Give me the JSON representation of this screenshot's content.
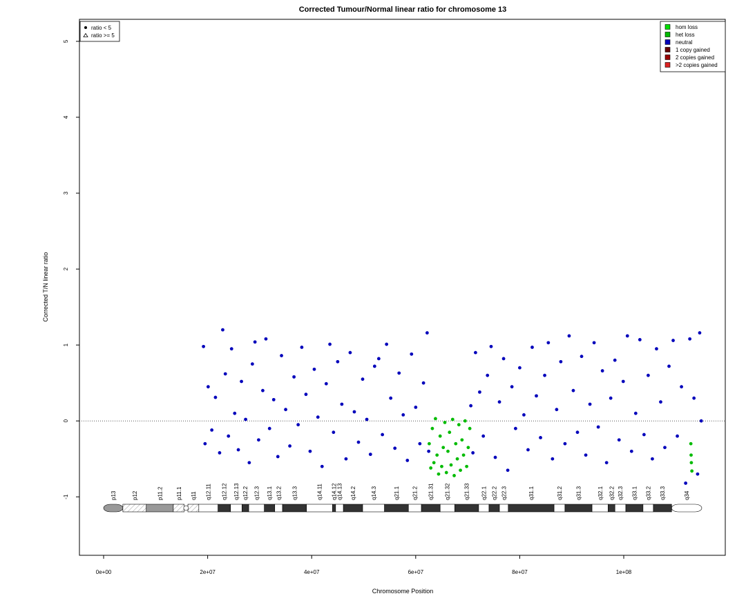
{
  "chart_data": {
    "type": "scatter",
    "title": "Corrected Tumour/Normal linear ratio for chromosome  13",
    "x_label": "Chromosome Position",
    "y_label": "Corrected T/N linear ratio",
    "xlim": [
      -4650000.0,
      119520000.0
    ],
    "ylim": [
      -1.77,
      5.29
    ],
    "xticks": [
      {
        "value": 0,
        "label": "0e+00"
      },
      {
        "value": 20000000.0,
        "label": "2e+07"
      },
      {
        "value": 40000000.0,
        "label": "4e+07"
      },
      {
        "value": 60000000.0,
        "label": "6e+07"
      },
      {
        "value": 80000000.0,
        "label": "8e+07"
      },
      {
        "value": 100000000.0,
        "label": "1e+08"
      }
    ],
    "yticks": [
      -1,
      0,
      1,
      2,
      3,
      4,
      5
    ],
    "hline": 0,
    "shape_legend": [
      "ratio < 5",
      "ratio >= 5"
    ],
    "legend_position": "top-right",
    "series": [
      {
        "name": "hom loss",
        "color": "#00e000",
        "x": [],
        "y": []
      },
      {
        "name": "het loss",
        "color": "#00bb00",
        "x": [
          62600000.0,
          62900000.0,
          63200000.0,
          63500000.0,
          63800000.0,
          64100000.0,
          64400000.0,
          64700000.0,
          65000000.0,
          65300000.0,
          65600000.0,
          65900000.0,
          66200000.0,
          66500000.0,
          66800000.0,
          67100000.0,
          67400000.0,
          67700000.0,
          68000000.0,
          68300000.0,
          68600000.0,
          68900000.0,
          69200000.0,
          69500000.0,
          69800000.0,
          70100000.0,
          70400000.0,
          112900000.0,
          112950000.0,
          113000000.0,
          113100000.0
        ],
        "y": [
          -0.3,
          -0.62,
          -0.1,
          -0.55,
          0.03,
          -0.45,
          -0.7,
          -0.2,
          -0.6,
          -0.35,
          -0.02,
          -0.68,
          -0.4,
          -0.15,
          -0.58,
          0.02,
          -0.72,
          -0.3,
          -0.5,
          -0.05,
          -0.65,
          -0.25,
          -0.45,
          0.0,
          -0.6,
          -0.35,
          -0.1,
          -0.3,
          -0.45,
          -0.55,
          -0.66
        ]
      },
      {
        "name": "neutral",
        "color": "#0000bb",
        "x": [
          19200000.0,
          19500000.0,
          20100000.0,
          20800000.0,
          21500000.0,
          22300000.0,
          22900000.0,
          23400000.0,
          24000000.0,
          24600000.0,
          25200000.0,
          25900000.0,
          26500000.0,
          27300000.0,
          28000000.0,
          28600000.0,
          29100000.0,
          29800000.0,
          30600000.0,
          31200000.0,
          31900000.0,
          32700000.0,
          33500000.0,
          34200000.0,
          35000000.0,
          35800000.0,
          36600000.0,
          37400000.0,
          38100000.0,
          38900000.0,
          39700000.0,
          40500000.0,
          41200000.0,
          42000000.0,
          42800000.0,
          43500000.0,
          44200000.0,
          45000000.0,
          45800000.0,
          46600000.0,
          47400000.0,
          48200000.0,
          49000000.0,
          49800000.0,
          50600000.0,
          51300000.0,
          52100000.0,
          52900000.0,
          53600000.0,
          54400000.0,
          55200000.0,
          56000000.0,
          56800000.0,
          57600000.0,
          58400000.0,
          59200000.0,
          60000000.0,
          60800000.0,
          61500000.0,
          62200000.0,
          62500000.0,
          70600000.0,
          71000000.0,
          71500000.0,
          72300000.0,
          73000000.0,
          73800000.0,
          74500000.0,
          75300000.0,
          76100000.0,
          76900000.0,
          77700000.0,
          78500000.0,
          79200000.0,
          80000000.0,
          80800000.0,
          81600000.0,
          82400000.0,
          83200000.0,
          84000000.0,
          84800000.0,
          85500000.0,
          86300000.0,
          87100000.0,
          87900000.0,
          88700000.0,
          89500000.0,
          90300000.0,
          91100000.0,
          91900000.0,
          92700000.0,
          93500000.0,
          94300000.0,
          95100000.0,
          95900000.0,
          96700000.0,
          97500000.0,
          98300000.0,
          99100000.0,
          99900000.0,
          100700000.0,
          101500000.0,
          102300000.0,
          103100000.0,
          103900000.0,
          104700000.0,
          105500000.0,
          106300000.0,
          107100000.0,
          107900000.0,
          108700000.0,
          109500000.0,
          110300000.0,
          111100000.0,
          111900000.0,
          112700000.0,
          113500000.0,
          114200000.0,
          114600000.0,
          114900000.0
        ],
        "y": [
          0.98,
          -0.3,
          0.45,
          -0.12,
          0.31,
          -0.42,
          1.2,
          0.62,
          -0.2,
          0.95,
          0.1,
          -0.38,
          0.52,
          0.02,
          -0.55,
          0.75,
          1.04,
          -0.25,
          0.4,
          1.08,
          -0.1,
          0.28,
          -0.47,
          0.86,
          0.15,
          -0.33,
          0.58,
          -0.05,
          0.97,
          0.35,
          -0.4,
          0.68,
          0.05,
          -0.6,
          0.49,
          1.01,
          -0.15,
          0.78,
          0.22,
          -0.5,
          0.9,
          0.12,
          -0.28,
          0.55,
          0.02,
          -0.44,
          0.72,
          0.82,
          -0.18,
          1.01,
          0.3,
          -0.36,
          0.63,
          0.08,
          -0.52,
          0.88,
          0.18,
          -0.3,
          0.5,
          1.16,
          -0.4,
          0.2,
          -0.42,
          0.9,
          0.38,
          -0.2,
          0.6,
          0.98,
          -0.48,
          0.25,
          0.82,
          -0.65,
          0.45,
          -0.1,
          0.7,
          0.08,
          -0.38,
          0.97,
          0.33,
          -0.22,
          0.6,
          1.03,
          -0.5,
          0.15,
          0.78,
          -0.3,
          1.12,
          0.4,
          -0.15,
          0.85,
          -0.45,
          0.22,
          1.03,
          -0.08,
          0.66,
          -0.55,
          0.3,
          0.8,
          -0.25,
          0.52,
          1.12,
          -0.4,
          0.1,
          1.07,
          -0.18,
          0.6,
          -0.5,
          0.95,
          0.25,
          -0.35,
          0.72,
          1.06,
          -0.2,
          0.45,
          -0.82,
          1.08,
          0.3,
          -0.7,
          1.16,
          0.0
        ]
      },
      {
        "name": "1 copy gained",
        "color": "#660000",
        "x": [],
        "y": []
      },
      {
        "name": "2 copies gained",
        "color": "#990000",
        "x": [],
        "y": []
      },
      {
        "name": ">2 copies gained",
        "color": "#dd2222",
        "x": [],
        "y": []
      }
    ],
    "ideogram": [
      {
        "label": "p13",
        "start": 0,
        "end": 3700000.0,
        "stain": "gpos50"
      },
      {
        "label": "p12",
        "start": 3700000.0,
        "end": 8200000.0,
        "stain": "stalk"
      },
      {
        "label": "p11.2",
        "start": 8200000.0,
        "end": 13400000.0,
        "stain": "gpos50"
      },
      {
        "label": "p11.1",
        "start": 13400000.0,
        "end": 15500000.0,
        "stain": "acen"
      },
      {
        "label": "q11",
        "start": 16200000.0,
        "end": 18300000.0,
        "stain": "acen"
      },
      {
        "label": "q12.11",
        "start": 18300000.0,
        "end": 22000000.0,
        "stain": "gneg"
      },
      {
        "label": "q12.12",
        "start": 22000000.0,
        "end": 24400000.0,
        "stain": "gpos100"
      },
      {
        "label": "q12.13",
        "start": 24400000.0,
        "end": 26600000.0,
        "stain": "gneg"
      },
      {
        "label": "q12.2",
        "start": 26600000.0,
        "end": 27900000.0,
        "stain": "gpos100"
      },
      {
        "label": "q12.3",
        "start": 27900000.0,
        "end": 30900000.0,
        "stain": "gneg"
      },
      {
        "label": "q13.1",
        "start": 30900000.0,
        "end": 32900000.0,
        "stain": "gpos100"
      },
      {
        "label": "q13.2",
        "start": 32900000.0,
        "end": 34400000.0,
        "stain": "gneg"
      },
      {
        "label": "q13.3",
        "start": 34400000.0,
        "end": 39000000.0,
        "stain": "gpos100"
      },
      {
        "label": "q14.11",
        "start": 39000000.0,
        "end": 44000000.0,
        "stain": "gneg"
      },
      {
        "label": "q14.12",
        "start": 44000000.0,
        "end": 44600000.0,
        "stain": "gpos100"
      },
      {
        "label": "q14.13",
        "start": 44600000.0,
        "end": 46100000.0,
        "stain": "gneg"
      },
      {
        "label": "q14.2",
        "start": 46100000.0,
        "end": 49800000.0,
        "stain": "gpos100"
      },
      {
        "label": "q14.3",
        "start": 49800000.0,
        "end": 54000000.0,
        "stain": "gneg"
      },
      {
        "label": "q21.1",
        "start": 54000000.0,
        "end": 58600000.0,
        "stain": "gpos100"
      },
      {
        "label": "q21.2",
        "start": 58600000.0,
        "end": 61100000.0,
        "stain": "gneg"
      },
      {
        "label": "q21.31",
        "start": 61100000.0,
        "end": 64700000.0,
        "stain": "gpos100"
      },
      {
        "label": "q21.32",
        "start": 64700000.0,
        "end": 67500000.0,
        "stain": "gneg"
      },
      {
        "label": "q21.33",
        "start": 67500000.0,
        "end": 72100000.0,
        "stain": "gpos100"
      },
      {
        "label": "q22.1",
        "start": 72100000.0,
        "end": 74100000.0,
        "stain": "gneg"
      },
      {
        "label": "q22.2",
        "start": 74100000.0,
        "end": 76100000.0,
        "stain": "gpos100"
      },
      {
        "label": "q22.3",
        "start": 76100000.0,
        "end": 77800000.0,
        "stain": "gneg"
      },
      {
        "label": "q31.1",
        "start": 77800000.0,
        "end": 86600000.0,
        "stain": "gpos100"
      },
      {
        "label": "q31.2",
        "start": 86600000.0,
        "end": 88700000.0,
        "stain": "gneg"
      },
      {
        "label": "q31.3",
        "start": 88700000.0,
        "end": 93900000.0,
        "stain": "gpos100"
      },
      {
        "label": "q32.1",
        "start": 93900000.0,
        "end": 97000000.0,
        "stain": "gneg"
      },
      {
        "label": "q32.2",
        "start": 97000000.0,
        "end": 98300000.0,
        "stain": "gpos100"
      },
      {
        "label": "q32.3",
        "start": 98300000.0,
        "end": 100400000.0,
        "stain": "gneg"
      },
      {
        "label": "q33.1",
        "start": 100400000.0,
        "end": 103700000.0,
        "stain": "gpos100"
      },
      {
        "label": "q33.2",
        "start": 103700000.0,
        "end": 105700000.0,
        "stain": "gneg"
      },
      {
        "label": "q33.3",
        "start": 105700000.0,
        "end": 109200000.0,
        "stain": "gpos100"
      },
      {
        "label": "q34",
        "start": 109200000.0,
        "end": 115000000.0,
        "stain": "gneg"
      }
    ]
  }
}
